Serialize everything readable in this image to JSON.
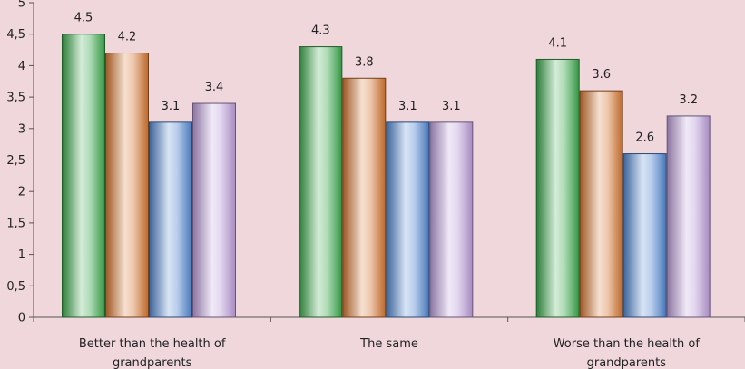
{
  "chart_data": {
    "type": "bar",
    "categories": [
      [
        "Better than the health of",
        "grandparents"
      ],
      [
        "The same"
      ],
      [
        "Worse than the health of",
        "grandparents"
      ]
    ],
    "series": [
      {
        "values": [
          4.5,
          4.3,
          4.1
        ],
        "color": "#3aa84a"
      },
      {
        "values": [
          4.2,
          3.8,
          3.6
        ],
        "color": "#d2742f"
      },
      {
        "values": [
          3.1,
          3.1,
          2.6
        ],
        "color": "#4f84cf"
      },
      {
        "values": [
          3.4,
          3.1,
          3.2
        ],
        "color": "#b99ad6"
      }
    ],
    "y_tick_labels": [
      "0",
      "0,5",
      "1",
      "1,5",
      "2",
      "2,5",
      "3",
      "3,5",
      "4",
      "4,5",
      "5"
    ],
    "ylim": [
      0,
      5
    ],
    "value_labels": [
      [
        "4.5",
        "4.2",
        "3.1",
        "3.4"
      ],
      [
        "4.3",
        "3.8",
        "3.1",
        "3.1"
      ],
      [
        "4.1",
        "3.6",
        "2.6",
        "3.2"
      ]
    ],
    "grid": false,
    "legend": "none"
  }
}
